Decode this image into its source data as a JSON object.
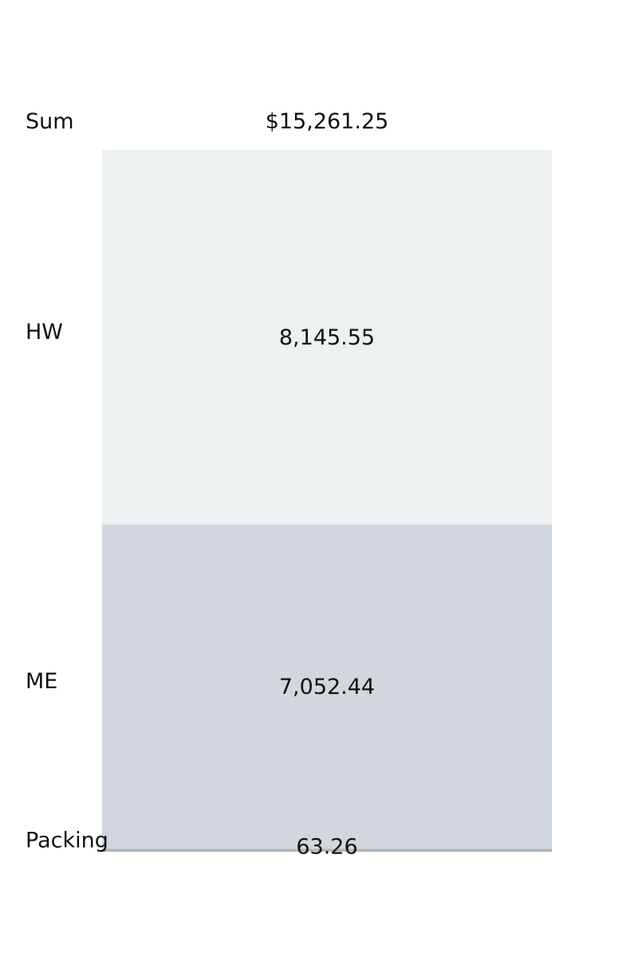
{
  "chart_data": {
    "type": "bar",
    "stacked": true,
    "orientation": "vertical-stack",
    "total": {
      "label": "Sum",
      "value_text": "$15,261.25",
      "value": 15261.25
    },
    "categories": [
      "HW",
      "ME",
      "Packing"
    ],
    "values": [
      8145.55,
      7052.44,
      63.26
    ],
    "value_labels": [
      "8,145.55",
      "7,052.44",
      "63.26"
    ],
    "colors": [
      "#eef1f1",
      "#d1d7dc",
      "#aeb7bd"
    ]
  }
}
